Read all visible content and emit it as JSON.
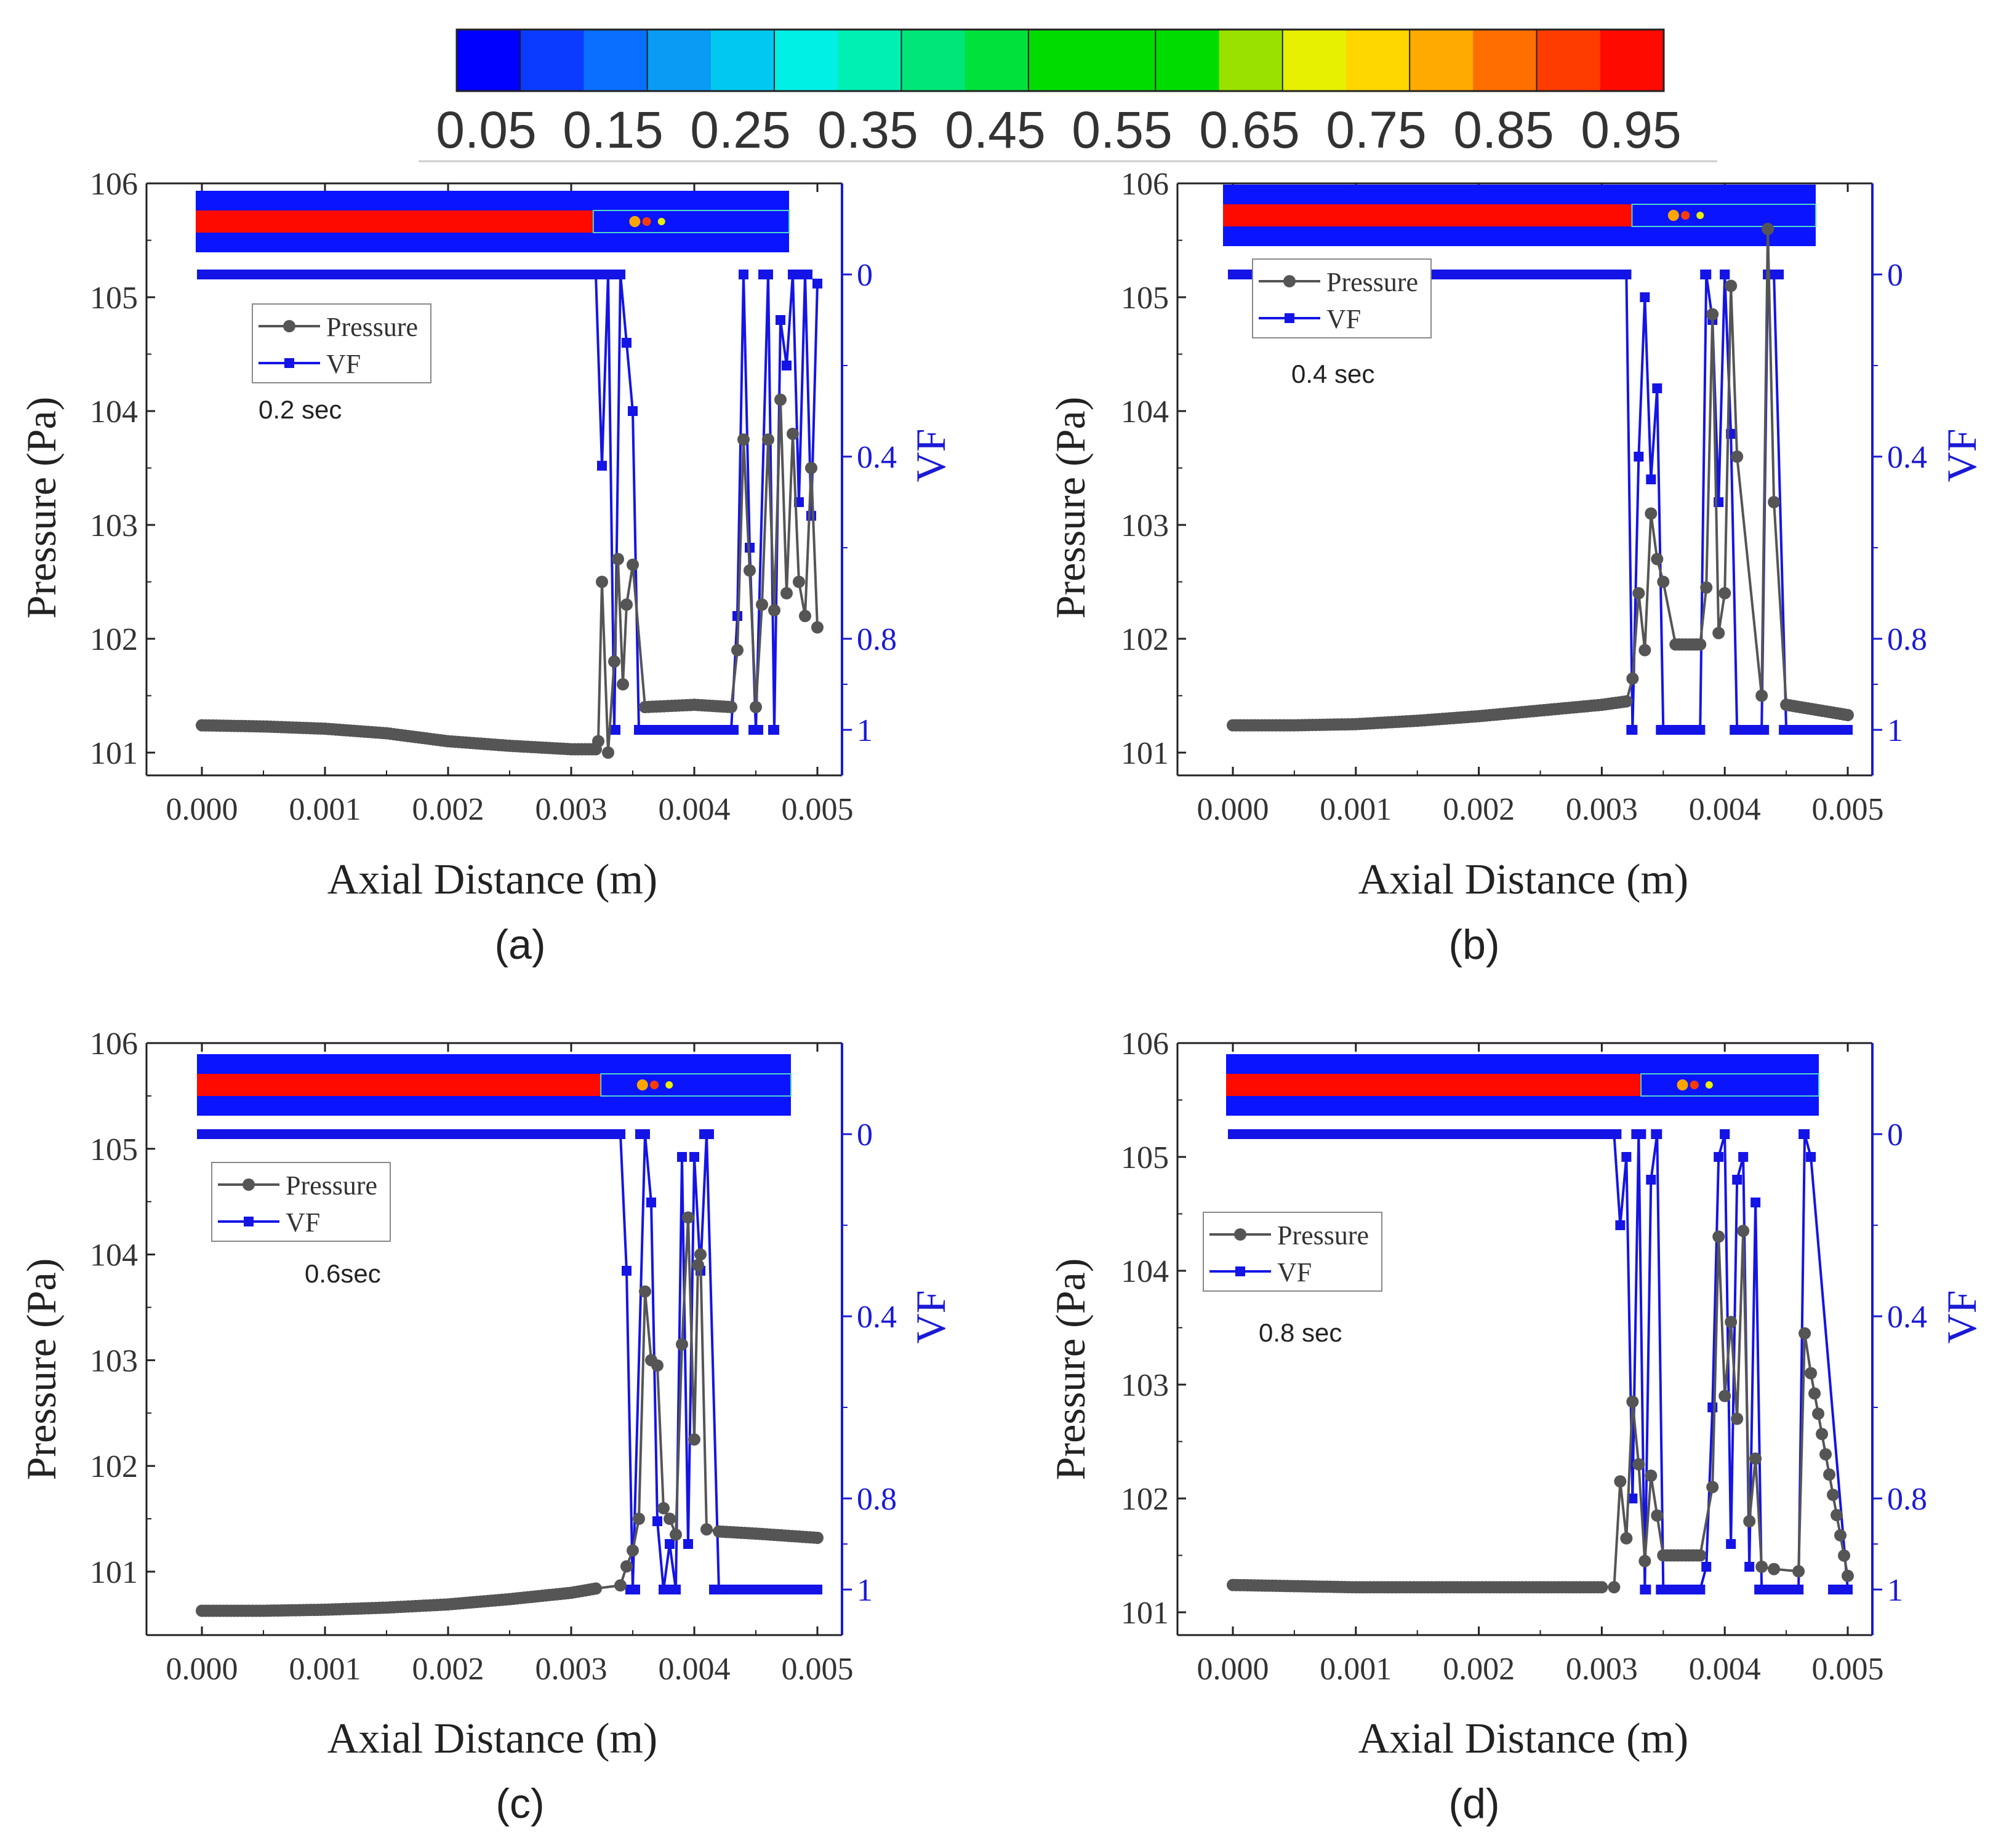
{
  "colorbar": {
    "ticks": [
      "0.05",
      "0.15",
      "0.25",
      "0.35",
      "0.45",
      "0.55",
      "0.65",
      "0.75",
      "0.85",
      "0.95"
    ],
    "colors": [
      "#0000ff",
      "#0a3cff",
      "#0a6eff",
      "#0a9bf5",
      "#00c8f0",
      "#00f0e6",
      "#00f0b4",
      "#00e678",
      "#00e13c",
      "#00dc00",
      "#00dc00",
      "#00dc00",
      "#9be100",
      "#e6f000",
      "#ffd700",
      "#ffaa00",
      "#ff6e00",
      "#ff3c00",
      "#ff0a00"
    ]
  },
  "chart_data": [
    {
      "type": "line",
      "panel": "(a)",
      "time_label": "0.2 sec",
      "xlabel": "Axial Distance (m)",
      "ylabel": "Pressure (Pa)",
      "y2label": "VF",
      "xlim": [
        -0.0005,
        0.0055
      ],
      "ylim": [
        100.8,
        106.0
      ],
      "y2lim": [
        1.1,
        -0.2
      ],
      "xticks": [
        "0.000",
        "0.001",
        "0.002",
        "0.003",
        "0.004",
        "0.005"
      ],
      "yticks": [
        "101",
        "102",
        "103",
        "104",
        "105",
        "106"
      ],
      "y2ticks": [
        "0",
        "0.4",
        "0.8",
        "1"
      ],
      "legend": [
        "Pressure",
        "VF"
      ],
      "series": [
        {
          "name": "Pressure",
          "color": "#555555",
          "x": [
            0.0,
            0.0005,
            0.001,
            0.0015,
            0.002,
            0.0025,
            0.003,
            0.0032,
            0.00322,
            0.00325,
            0.0033,
            0.00335,
            0.00338,
            0.00342,
            0.00345,
            0.0035,
            0.0036,
            0.004,
            0.0043,
            0.00435,
            0.0044,
            0.00445,
            0.0045,
            0.00455,
            0.0046,
            0.00465,
            0.0047,
            0.00475,
            0.0048,
            0.00485,
            0.0049,
            0.00495,
            0.005
          ],
          "values": [
            101.24,
            101.23,
            101.21,
            101.17,
            101.1,
            101.06,
            101.03,
            101.03,
            101.1,
            102.5,
            101.0,
            101.8,
            102.7,
            101.6,
            102.3,
            102.65,
            101.4,
            101.42,
            101.4,
            101.9,
            103.75,
            102.6,
            101.4,
            102.3,
            103.75,
            102.25,
            104.1,
            102.4,
            103.8,
            102.5,
            102.2,
            103.5,
            102.1
          ]
        },
        {
          "name": "VF",
          "color": "#1414e6",
          "x": [
            0.0,
            0.001,
            0.002,
            0.003,
            0.0032,
            0.00325,
            0.0033,
            0.00335,
            0.0034,
            0.00345,
            0.0035,
            0.00355,
            0.0036,
            0.004,
            0.0043,
            0.00435,
            0.0044,
            0.00445,
            0.0045,
            0.0046,
            0.00465,
            0.0047,
            0.00475,
            0.0048,
            0.00485,
            0.0049,
            0.00495,
            0.005
          ],
          "values": [
            0.0,
            0.0,
            0.0,
            0.0,
            0.0,
            0.42,
            0.0,
            1.0,
            0.0,
            0.15,
            0.3,
            1.0,
            1.0,
            1.0,
            1.0,
            0.75,
            0.0,
            0.6,
            1.0,
            0.0,
            1.0,
            0.1,
            0.2,
            0.0,
            0.5,
            0.0,
            0.53,
            0.02
          ]
        }
      ]
    },
    {
      "type": "line",
      "panel": "(b)",
      "time_label": "0.4 sec",
      "xlabel": "Axial Distance (m)",
      "ylabel": "Pressure (Pa)",
      "y2label": "VF",
      "xlim": [
        -0.0005,
        0.0055
      ],
      "ylim": [
        100.8,
        106.0
      ],
      "y2lim": [
        1.1,
        -0.2
      ],
      "xticks": [
        "0.000",
        "0.001",
        "0.002",
        "0.003",
        "0.004",
        "0.005"
      ],
      "yticks": [
        "101",
        "102",
        "103",
        "104",
        "105",
        "106"
      ],
      "y2ticks": [
        "0",
        "0.4",
        "0.8",
        "1"
      ],
      "legend": [
        "Pressure",
        "VF"
      ],
      "series": [
        {
          "name": "Pressure",
          "color": "#555555",
          "x": [
            0.0,
            0.0005,
            0.001,
            0.0015,
            0.002,
            0.0025,
            0.003,
            0.0032,
            0.00325,
            0.0033,
            0.00335,
            0.0034,
            0.00345,
            0.0035,
            0.0036,
            0.0038,
            0.00385,
            0.0039,
            0.00395,
            0.004,
            0.00405,
            0.0041,
            0.0043,
            0.00435,
            0.0044,
            0.0045,
            0.005
          ],
          "values": [
            101.24,
            101.24,
            101.25,
            101.28,
            101.32,
            101.37,
            101.42,
            101.45,
            101.65,
            102.4,
            101.9,
            103.1,
            102.7,
            102.5,
            101.95,
            101.95,
            102.45,
            104.85,
            102.05,
            102.4,
            105.1,
            103.6,
            101.5,
            105.6,
            103.2,
            101.42,
            101.33
          ]
        },
        {
          "name": "VF",
          "color": "#1414e6",
          "x": [
            0.0,
            0.001,
            0.002,
            0.003,
            0.0032,
            0.00325,
            0.0033,
            0.00335,
            0.0034,
            0.00345,
            0.0035,
            0.0036,
            0.0038,
            0.00385,
            0.0039,
            0.00395,
            0.004,
            0.00405,
            0.0041,
            0.0043,
            0.00435,
            0.0044,
            0.0045,
            0.005
          ],
          "values": [
            0.0,
            0.0,
            0.0,
            0.0,
            0.0,
            1.0,
            0.4,
            0.05,
            0.45,
            0.25,
            1.0,
            1.0,
            1.0,
            0.0,
            0.1,
            0.5,
            0.0,
            0.35,
            1.0,
            1.0,
            0.0,
            0.0,
            1.0,
            1.0
          ]
        }
      ]
    },
    {
      "type": "line",
      "panel": "(c)",
      "time_label": "0.6sec",
      "xlabel": "Axial Distance (m)",
      "ylabel": "Pressure (Pa)",
      "y2label": "VF",
      "xlim": [
        -0.0005,
        0.0055
      ],
      "ylim": [
        100.4,
        106.0
      ],
      "y2lim": [
        1.1,
        -0.2
      ],
      "xticks": [
        "0.000",
        "0.001",
        "0.002",
        "0.003",
        "0.004",
        "0.005"
      ],
      "yticks": [
        "101",
        "102",
        "103",
        "104",
        "105",
        "106"
      ],
      "y2ticks": [
        "0",
        "0.4",
        "0.8",
        "1"
      ],
      "legend": [
        "Pressure",
        "VF"
      ],
      "series": [
        {
          "name": "Pressure",
          "color": "#555555",
          "x": [
            0.0,
            0.0005,
            0.001,
            0.0015,
            0.002,
            0.0025,
            0.003,
            0.0032,
            0.0034,
            0.00345,
            0.0035,
            0.00355,
            0.0036,
            0.00365,
            0.0037,
            0.00375,
            0.0038,
            0.00385,
            0.0039,
            0.00395,
            0.004,
            0.00403,
            0.00405,
            0.0041,
            0.0042,
            0.0045,
            0.005
          ],
          "values": [
            100.63,
            100.63,
            100.64,
            100.66,
            100.69,
            100.74,
            100.8,
            100.84,
            100.87,
            101.05,
            101.2,
            101.5,
            103.65,
            103.0,
            102.95,
            101.6,
            101.5,
            101.35,
            103.15,
            104.35,
            102.25,
            103.9,
            104.0,
            101.4,
            101.38,
            101.36,
            101.32
          ]
        },
        {
          "name": "VF",
          "color": "#1414e6",
          "x": [
            0.0,
            0.001,
            0.002,
            0.003,
            0.0034,
            0.00345,
            0.0035,
            0.0036,
            0.00365,
            0.0037,
            0.00375,
            0.0038,
            0.00385,
            0.0039,
            0.00395,
            0.004,
            0.00405,
            0.0041,
            0.0042,
            0.005
          ],
          "values": [
            0.0,
            0.0,
            0.0,
            0.0,
            0.0,
            0.3,
            1.0,
            0.0,
            0.15,
            0.85,
            1.0,
            0.9,
            1.0,
            0.05,
            0.9,
            0.05,
            0.3,
            0.0,
            1.0,
            1.0
          ]
        }
      ]
    },
    {
      "type": "line",
      "panel": "(d)",
      "time_label": "0.8 sec",
      "xlabel": "Axial Distance (m)",
      "ylabel": "Pressure (Pa)",
      "y2label": "VF",
      "xlim": [
        -0.0005,
        0.0055
      ],
      "ylim": [
        100.8,
        106.0
      ],
      "y2lim": [
        1.1,
        -0.2
      ],
      "xticks": [
        "0.000",
        "0.001",
        "0.002",
        "0.003",
        "0.004",
        "0.005"
      ],
      "yticks": [
        "101",
        "102",
        "103",
        "104",
        "105",
        "106"
      ],
      "y2ticks": [
        "0",
        "0.4",
        "0.8",
        "1"
      ],
      "legend": [
        "Pressure",
        "VF"
      ],
      "series": [
        {
          "name": "Pressure",
          "color": "#555555",
          "x": [
            0.0,
            0.0005,
            0.001,
            0.0015,
            0.002,
            0.0025,
            0.003,
            0.0031,
            0.00315,
            0.0032,
            0.00325,
            0.0033,
            0.00335,
            0.0034,
            0.00345,
            0.0035,
            0.0038,
            0.0039,
            0.00395,
            0.004,
            0.00405,
            0.0041,
            0.00415,
            0.0042,
            0.00425,
            0.0043,
            0.0044,
            0.0046,
            0.00465,
            0.0047,
            0.005
          ],
          "values": [
            101.24,
            101.23,
            101.22,
            101.22,
            101.22,
            101.22,
            101.22,
            101.22,
            102.15,
            101.65,
            102.85,
            102.3,
            101.45,
            102.2,
            101.85,
            101.5,
            101.5,
            102.1,
            104.3,
            102.9,
            103.55,
            102.7,
            104.35,
            101.8,
            102.35,
            101.4,
            101.38,
            101.36,
            103.45,
            103.1,
            101.32
          ]
        },
        {
          "name": "VF",
          "color": "#1414e6",
          "x": [
            0.0,
            0.001,
            0.002,
            0.003,
            0.0031,
            0.00315,
            0.0032,
            0.00325,
            0.0033,
            0.00335,
            0.0034,
            0.00345,
            0.0035,
            0.0038,
            0.00385,
            0.0039,
            0.00395,
            0.004,
            0.00405,
            0.0041,
            0.00415,
            0.0042,
            0.00425,
            0.0043,
            0.0044,
            0.0046,
            0.00465,
            0.0047,
            0.005
          ],
          "values": [
            0.0,
            0.0,
            0.0,
            0.0,
            0.0,
            0.2,
            0.05,
            0.8,
            0.0,
            1.0,
            0.1,
            0.0,
            1.0,
            1.0,
            0.95,
            0.6,
            0.05,
            0.0,
            0.9,
            0.1,
            0.05,
            0.95,
            0.15,
            1.0,
            1.0,
            1.0,
            0.0,
            0.05,
            1.0
          ]
        }
      ]
    }
  ]
}
